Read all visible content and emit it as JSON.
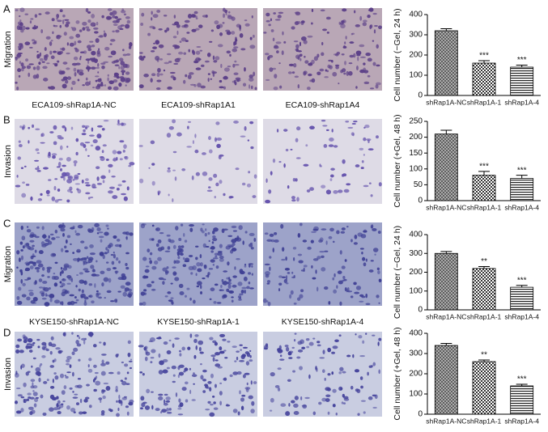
{
  "panels": [
    {
      "label": "A",
      "row_label": "Migration",
      "captions": [
        "ECA109-shRap1A-NC",
        "ECA109-shRap1A1",
        "ECA109-shRap1A4"
      ]
    },
    {
      "label": "B",
      "row_label": "Invasion"
    },
    {
      "label": "C",
      "row_label": "Migration",
      "captions": [
        "KYSE150-shRap1A-NC",
        "KYSE150-shRap1A-1",
        "KYSE150-shRap1A-4"
      ]
    },
    {
      "label": "D",
      "row_label": "Invasion"
    }
  ],
  "chart_data": [
    {
      "type": "bar",
      "y_label": "Cell number (−Gel, 24 h)",
      "categories": [
        "shRap1A-NC",
        "shRap1A-1",
        "shRap1A-4"
      ],
      "values": [
        320,
        160,
        140
      ],
      "errors": [
        10,
        12,
        10
      ],
      "annotations": [
        null,
        "***",
        "***"
      ],
      "ylim": [
        0,
        400
      ],
      "yticks": [
        0,
        100,
        200,
        300,
        400
      ]
    },
    {
      "type": "bar",
      "y_label": "Cell number (+Gel, 48 h)",
      "categories": [
        "shRap1A-NC",
        "shRap1A-1",
        "shRap1A-4"
      ],
      "values": [
        210,
        80,
        70
      ],
      "errors": [
        12,
        12,
        10
      ],
      "annotations": [
        null,
        "***",
        "***"
      ],
      "ylim": [
        0,
        250
      ],
      "yticks": [
        0,
        50,
        100,
        150,
        200,
        250
      ]
    },
    {
      "type": "bar",
      "y_label": "Cell number (−Gel, 24 h)",
      "categories": [
        "shRap1A-NC",
        "shRap1A-1",
        "shRap1A-4"
      ],
      "values": [
        300,
        220,
        120
      ],
      "errors": [
        10,
        10,
        10
      ],
      "annotations": [
        null,
        "**",
        "***"
      ],
      "ylim": [
        0,
        400
      ],
      "yticks": [
        0,
        100,
        200,
        300,
        400
      ]
    },
    {
      "type": "bar",
      "y_label": "Cell number (+Gel, 48 h)",
      "categories": [
        "shRap1A-NC",
        "shRap1A-1",
        "shRap1A-4"
      ],
      "values": [
        340,
        260,
        140
      ],
      "errors": [
        10,
        8,
        8
      ],
      "annotations": [
        null,
        "**",
        "***"
      ],
      "ylim": [
        0,
        400
      ],
      "yticks": [
        0,
        100,
        200,
        300,
        400
      ]
    }
  ]
}
